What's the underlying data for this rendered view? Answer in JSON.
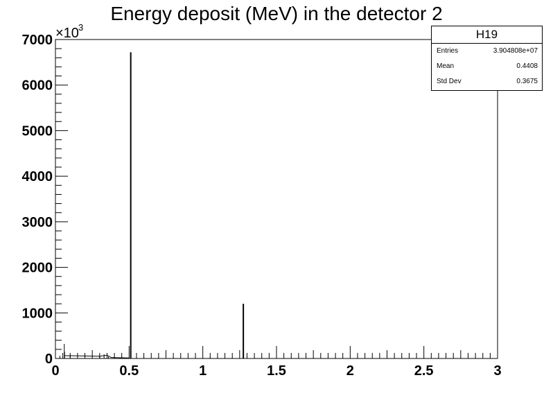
{
  "chart_data": {
    "type": "bar",
    "title": "Energy deposit (MeV) in the detector 2",
    "xlabel": "",
    "ylabel": "",
    "xlim": [
      0,
      3
    ],
    "ylim": [
      0,
      7000
    ],
    "y_multiplier": "×10",
    "y_multiplier_exp": "3",
    "x_ticks": [
      "0",
      "0.5",
      "1",
      "1.5",
      "2",
      "2.5",
      "3"
    ],
    "y_ticks": [
      "0",
      "1000",
      "2000",
      "3000",
      "4000",
      "5000",
      "6000",
      "7000"
    ],
    "grid": false,
    "legend": "none",
    "series": [
      {
        "x": [
          0.03,
          0.06,
          0.062,
          0.1,
          0.2,
          0.3,
          0.33,
          0.36,
          0.4,
          0.511,
          0.6,
          0.7,
          0.8,
          0.9,
          1.0,
          1.05,
          1.1,
          1.2,
          1.275,
          1.3,
          1.4,
          1.5,
          1.6,
          1.7,
          1.8,
          1.9,
          2.0,
          2.1,
          2.2,
          2.3,
          2.4,
          2.5,
          2.6,
          2.7,
          2.8,
          2.9
        ],
        "values": [
          60,
          320,
          150,
          70,
          65,
          60,
          90,
          40,
          30,
          6720,
          20,
          15,
          12,
          10,
          15,
          30,
          10,
          12,
          1200,
          10,
          10,
          12,
          10,
          8,
          6,
          5,
          5,
          4,
          4,
          3,
          3,
          3,
          2,
          2,
          2,
          2
        ]
      }
    ]
  },
  "stats": {
    "name": "H19",
    "entries_label": "Entries",
    "entries": "3.904808e+07",
    "mean_label": "Mean",
    "mean": "0.4408",
    "stddev_label": "Std Dev",
    "stddev": "0.3675"
  }
}
